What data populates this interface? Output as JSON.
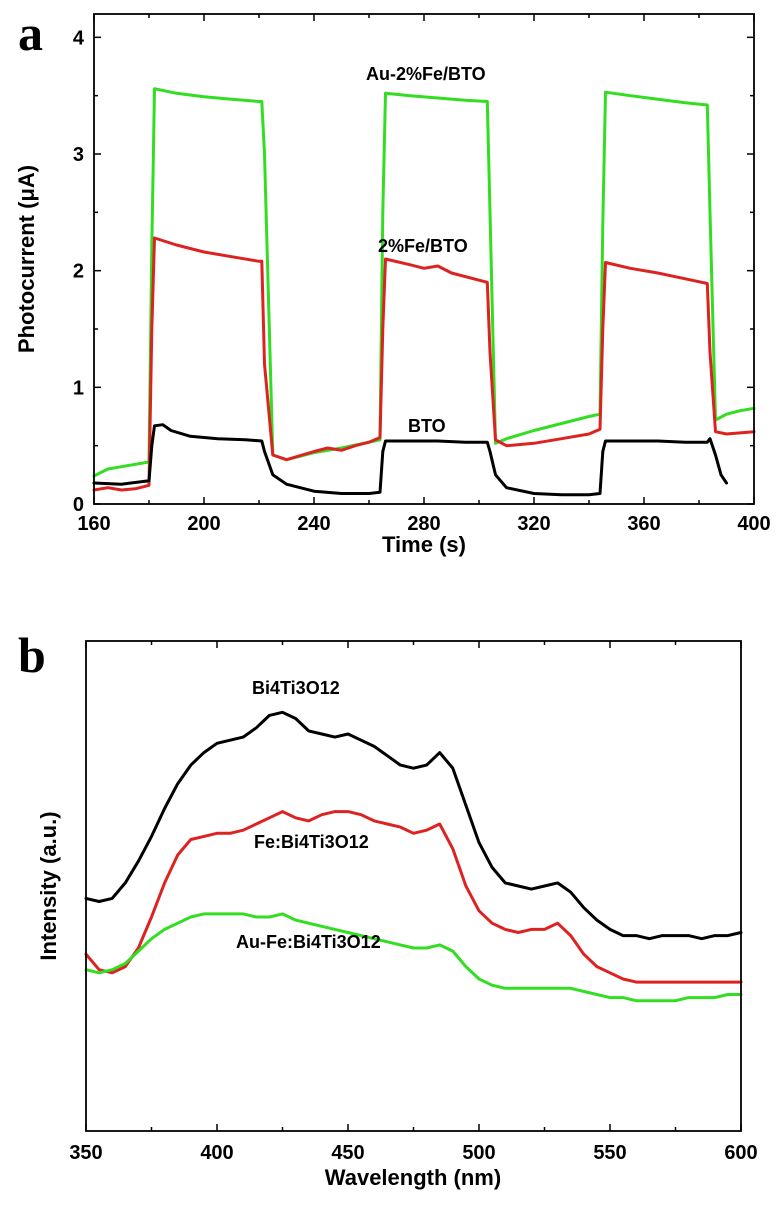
{
  "chart_data": [
    {
      "panel_label": "a",
      "type": "line",
      "xlabel": "Time (s)",
      "ylabel": "Photocurrent (μA)",
      "xlim": [
        160,
        400
      ],
      "ylim": [
        0,
        4.2
      ],
      "xticks": [
        "160",
        "200",
        "240",
        "280",
        "320",
        "360",
        "400"
      ],
      "yticks": [
        "0",
        "1",
        "2",
        "3",
        "4"
      ],
      "grid": false,
      "series": [
        {
          "name": "Au-2%Fe/BTO",
          "color": "#33dd22",
          "x": [
            160,
            165,
            170,
            175,
            180,
            181,
            182,
            190,
            200,
            210,
            220,
            221,
            222,
            225,
            230,
            240,
            250,
            260,
            264,
            265,
            266,
            275,
            285,
            295,
            303,
            304,
            306,
            310,
            320,
            330,
            340,
            344,
            345,
            346,
            355,
            365,
            375,
            383,
            384,
            386,
            390,
            395,
            400
          ],
          "y": [
            0.24,
            0.3,
            0.32,
            0.34,
            0.36,
            2.2,
            3.56,
            3.52,
            3.49,
            3.47,
            3.45,
            3.45,
            3.0,
            0.42,
            0.38,
            0.44,
            0.48,
            0.53,
            0.55,
            2.5,
            3.52,
            3.5,
            3.48,
            3.46,
            3.45,
            2.5,
            0.52,
            0.56,
            0.63,
            0.69,
            0.75,
            0.77,
            2.4,
            3.53,
            3.5,
            3.47,
            3.44,
            3.42,
            2.5,
            0.72,
            0.77,
            0.8,
            0.82
          ]
        },
        {
          "name": "2%Fe/BTO",
          "color": "#dd2222",
          "x": [
            160,
            165,
            170,
            175,
            180,
            181,
            182,
            190,
            200,
            210,
            220,
            221,
            222,
            225,
            230,
            240,
            245,
            250,
            255,
            260,
            264,
            265,
            266,
            275,
            280,
            285,
            290,
            303,
            304,
            306,
            310,
            320,
            330,
            340,
            344,
            345,
            346,
            355,
            365,
            375,
            383,
            384,
            386,
            390,
            400
          ],
          "y": [
            0.12,
            0.14,
            0.12,
            0.13,
            0.16,
            1.5,
            2.28,
            2.22,
            2.16,
            2.12,
            2.08,
            2.08,
            1.2,
            0.42,
            0.38,
            0.45,
            0.48,
            0.46,
            0.5,
            0.53,
            0.57,
            1.5,
            2.1,
            2.05,
            2.02,
            2.04,
            1.98,
            1.9,
            1.3,
            0.55,
            0.5,
            0.52,
            0.56,
            0.6,
            0.64,
            1.5,
            2.07,
            2.02,
            1.98,
            1.93,
            1.89,
            1.3,
            0.62,
            0.6,
            0.62
          ]
        },
        {
          "name": "BTO",
          "color": "#000000",
          "x": [
            160,
            170,
            180,
            181,
            182,
            185,
            188,
            195,
            205,
            215,
            221,
            222,
            225,
            230,
            240,
            250,
            260,
            264,
            265,
            266,
            275,
            285,
            295,
            303,
            304,
            306,
            310,
            320,
            330,
            340,
            344,
            345,
            346,
            355,
            365,
            375,
            383,
            384,
            386,
            388,
            390
          ],
          "y": [
            0.18,
            0.17,
            0.2,
            0.5,
            0.67,
            0.68,
            0.63,
            0.58,
            0.56,
            0.55,
            0.54,
            0.45,
            0.25,
            0.17,
            0.11,
            0.09,
            0.09,
            0.1,
            0.45,
            0.54,
            0.54,
            0.54,
            0.53,
            0.53,
            0.45,
            0.25,
            0.14,
            0.09,
            0.08,
            0.08,
            0.09,
            0.45,
            0.54,
            0.54,
            0.54,
            0.53,
            0.53,
            0.56,
            0.42,
            0.25,
            0.18
          ]
        }
      ],
      "annotations": [
        "Au-2%Fe/BTO",
        "2%Fe/BTO",
        "BTO"
      ]
    },
    {
      "panel_label": "b",
      "type": "line",
      "xlabel": "Wavelength (nm)",
      "ylabel": "Intensity (a.u.)",
      "xlim": [
        350,
        600
      ],
      "xticks": [
        "350",
        "400",
        "450",
        "500",
        "550",
        "600"
      ],
      "y_tick_labels_shown": false,
      "grid": false,
      "series": [
        {
          "name": "Bi4Ti3O12",
          "color": "#000000",
          "x": [
            350,
            355,
            360,
            365,
            370,
            375,
            380,
            385,
            390,
            395,
            400,
            405,
            410,
            415,
            420,
            425,
            430,
            435,
            440,
            445,
            450,
            455,
            460,
            465,
            470,
            475,
            480,
            485,
            490,
            495,
            500,
            505,
            510,
            515,
            520,
            525,
            530,
            535,
            540,
            545,
            550,
            555,
            560,
            565,
            570,
            575,
            580,
            585,
            590,
            595,
            600
          ],
          "y": [
            0.48,
            0.47,
            0.48,
            0.53,
            0.6,
            0.68,
            0.77,
            0.85,
            0.91,
            0.95,
            0.98,
            0.99,
            1.0,
            1.03,
            1.07,
            1.08,
            1.06,
            1.02,
            1.01,
            1.0,
            1.01,
            0.99,
            0.97,
            0.94,
            0.91,
            0.9,
            0.91,
            0.95,
            0.9,
            0.78,
            0.66,
            0.58,
            0.53,
            0.52,
            0.51,
            0.52,
            0.53,
            0.5,
            0.45,
            0.41,
            0.38,
            0.36,
            0.36,
            0.35,
            0.36,
            0.36,
            0.36,
            0.35,
            0.36,
            0.36,
            0.37
          ]
        },
        {
          "name": "Fe:Bi4Ti3O12",
          "color": "#dd2222",
          "x": [
            350,
            355,
            360,
            365,
            370,
            375,
            380,
            385,
            390,
            395,
            400,
            405,
            410,
            415,
            420,
            425,
            430,
            435,
            440,
            445,
            450,
            455,
            460,
            465,
            470,
            475,
            480,
            485,
            490,
            495,
            500,
            505,
            510,
            515,
            520,
            525,
            530,
            535,
            540,
            545,
            550,
            555,
            560,
            565,
            570,
            575,
            580,
            585,
            590,
            595,
            600
          ],
          "y": [
            0.3,
            0.25,
            0.24,
            0.26,
            0.32,
            0.42,
            0.53,
            0.62,
            0.67,
            0.68,
            0.69,
            0.69,
            0.7,
            0.72,
            0.74,
            0.76,
            0.74,
            0.73,
            0.75,
            0.76,
            0.76,
            0.75,
            0.73,
            0.72,
            0.71,
            0.69,
            0.7,
            0.72,
            0.64,
            0.52,
            0.44,
            0.4,
            0.38,
            0.37,
            0.38,
            0.38,
            0.4,
            0.36,
            0.3,
            0.26,
            0.24,
            0.22,
            0.21,
            0.21,
            0.21,
            0.21,
            0.21,
            0.21,
            0.21,
            0.21,
            0.21
          ]
        },
        {
          "name": "Au-Fe:Bi4Ti3O12",
          "color": "#33dd22",
          "x": [
            350,
            355,
            360,
            365,
            370,
            375,
            380,
            385,
            390,
            395,
            400,
            405,
            410,
            415,
            420,
            425,
            430,
            435,
            440,
            445,
            450,
            455,
            460,
            465,
            470,
            475,
            480,
            485,
            490,
            495,
            500,
            505,
            510,
            515,
            520,
            525,
            530,
            535,
            540,
            545,
            550,
            555,
            560,
            565,
            570,
            575,
            580,
            585,
            590,
            595,
            600
          ],
          "y": [
            0.25,
            0.24,
            0.25,
            0.27,
            0.31,
            0.35,
            0.38,
            0.4,
            0.42,
            0.43,
            0.43,
            0.43,
            0.43,
            0.42,
            0.42,
            0.43,
            0.41,
            0.4,
            0.39,
            0.38,
            0.37,
            0.36,
            0.35,
            0.34,
            0.33,
            0.32,
            0.32,
            0.33,
            0.31,
            0.26,
            0.22,
            0.2,
            0.19,
            0.19,
            0.19,
            0.19,
            0.19,
            0.19,
            0.18,
            0.17,
            0.16,
            0.16,
            0.15,
            0.15,
            0.15,
            0.15,
            0.16,
            0.16,
            0.16,
            0.17,
            0.17
          ]
        }
      ],
      "annotations": [
        "Bi4Ti3O12",
        "Fe:Bi4Ti3O12",
        "Au-Fe:Bi4Ti3O12"
      ]
    }
  ]
}
